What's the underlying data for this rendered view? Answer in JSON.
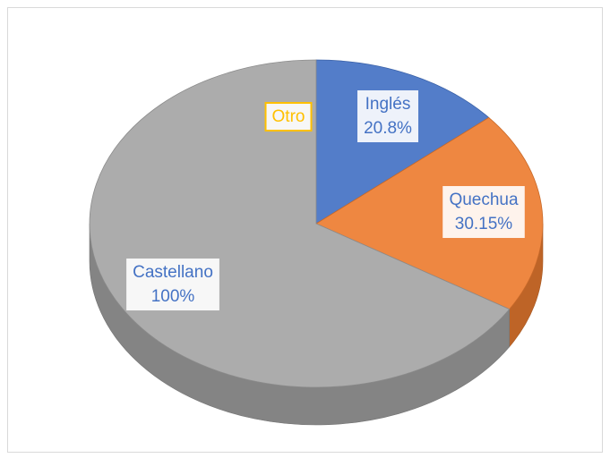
{
  "chart_data": {
    "type": "pie3d",
    "categories": [
      "Inglés",
      "Quechua",
      "Castellano",
      "Otro"
    ],
    "values": [
      20.8,
      30.15,
      100,
      0
    ],
    "value_labels": [
      "20.8%",
      "30.15%",
      "100%",
      null
    ],
    "colors": [
      "#4472c4",
      "#ed7d31",
      "#a5a5a5",
      "#ffc000"
    ]
  }
}
